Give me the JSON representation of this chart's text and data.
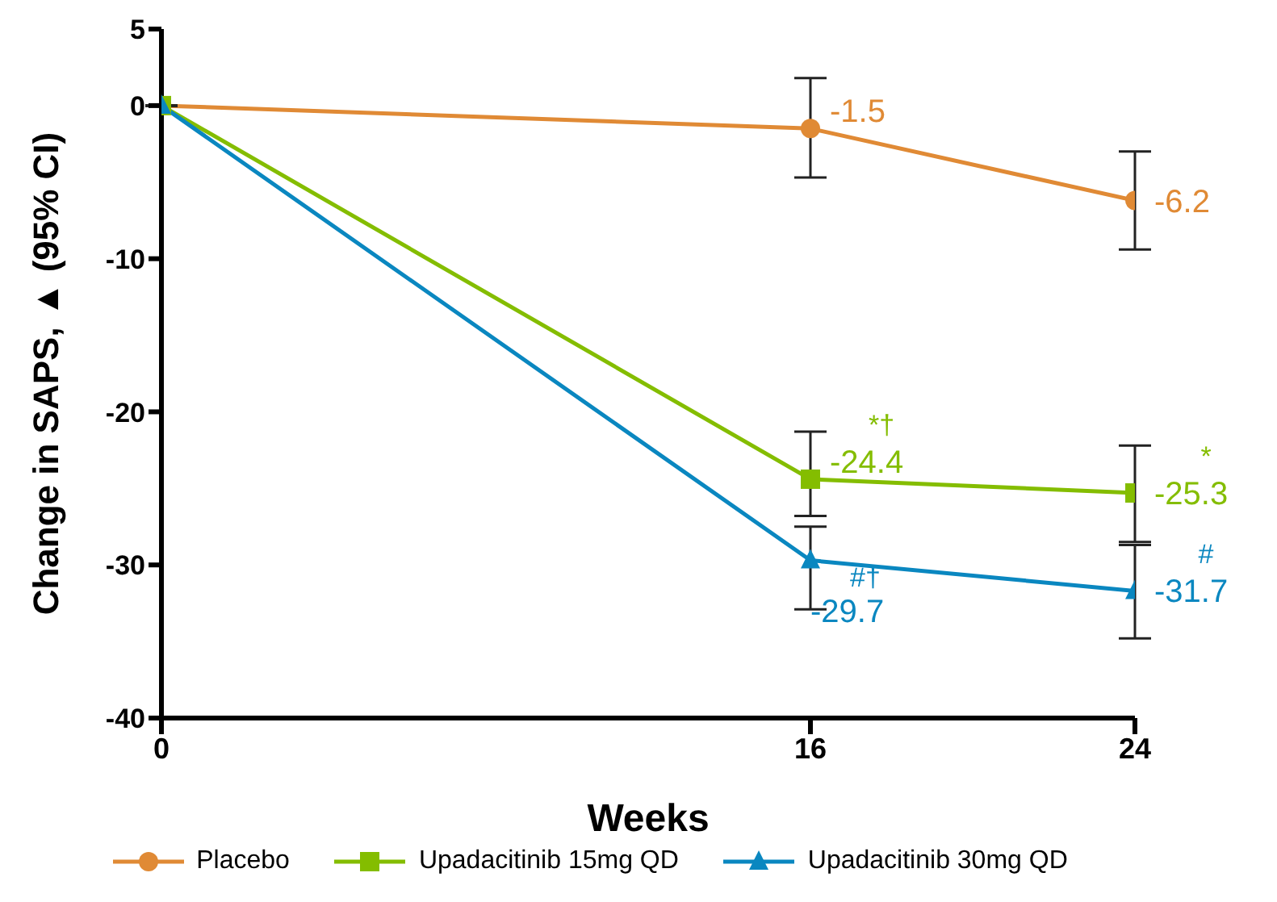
{
  "chart_data": {
    "type": "line",
    "xlabel": "Weeks",
    "ylabel": "Change in SAPS, ▲ (95% CI)",
    "x": [
      0,
      16,
      24
    ],
    "xlim": [
      0,
      24
    ],
    "xticks": [
      0,
      16,
      24
    ],
    "ylim": [
      -40,
      5
    ],
    "yticks": [
      -40,
      -30,
      -20,
      -10,
      0,
      5
    ],
    "grid": false,
    "legend": "bottom",
    "series": [
      {
        "name": "Placebo",
        "color": "#e08a35",
        "marker": "circle",
        "values": [
          0,
          -1.5,
          -6.2
        ],
        "errors": [
          null,
          [
            -4.7,
            1.8
          ],
          [
            -9.4,
            -3.0
          ]
        ],
        "value_labels": [
          null,
          "-1.5",
          "-6.2"
        ]
      },
      {
        "name": "Upadacitinib 15mg QD",
        "color": "#84bd00",
        "marker": "square",
        "values": [
          0,
          -24.4,
          -25.3
        ],
        "errors": [
          null,
          [
            -26.8,
            -21.3
          ],
          [
            -28.5,
            -22.2
          ]
        ],
        "value_labels": [
          null,
          "-24.4",
          "-25.3"
        ]
      },
      {
        "name": "Upadacitinib 30mg QD",
        "color": "#0a87c0",
        "marker": "triangle",
        "values": [
          0,
          -29.7,
          -31.7
        ],
        "errors": [
          null,
          [
            -32.9,
            -27.5
          ],
          [
            -34.8,
            -28.7
          ]
        ],
        "value_labels": [
          null,
          "-29.7",
          "-31.7"
        ]
      }
    ],
    "annotations": [
      "*†",
      "*",
      "#†",
      "#"
    ]
  }
}
